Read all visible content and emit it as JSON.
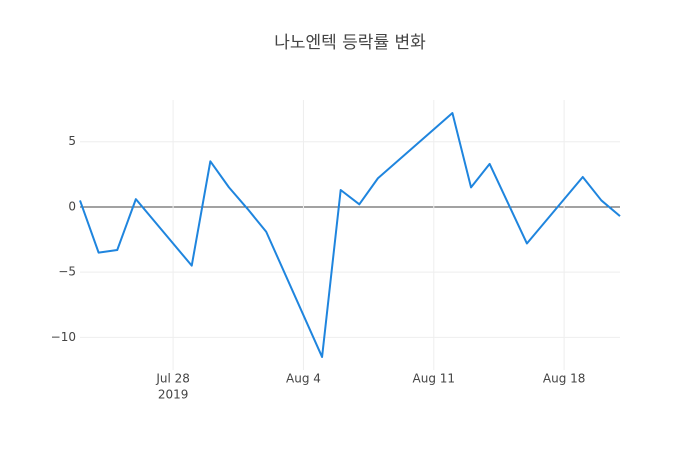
{
  "chart_data": {
    "type": "line",
    "title": "나노엔텍 등락률 변화",
    "x": [
      "2019-07-23",
      "2019-07-24",
      "2019-07-25",
      "2019-07-26",
      "2019-07-29",
      "2019-07-30",
      "2019-07-31",
      "2019-08-01",
      "2019-08-02",
      "2019-08-05",
      "2019-08-06",
      "2019-08-07",
      "2019-08-08",
      "2019-08-12",
      "2019-08-13",
      "2019-08-14",
      "2019-08-16",
      "2019-08-19",
      "2019-08-20",
      "2019-08-21"
    ],
    "series": [
      {
        "color": "#1f85de",
        "values": [
          0.5,
          -3.5,
          -3.3,
          0.6,
          -4.5,
          3.5,
          1.5,
          -0.15,
          -1.9,
          -11.5,
          1.3,
          0.2,
          2.2,
          7.2,
          1.5,
          3.3,
          -2.8,
          2.3,
          0.5,
          -0.7
        ]
      }
    ],
    "xlim": [
      "2019-07-23",
      "2019-08-21"
    ],
    "xticks": [
      {
        "value": "2019-07-28",
        "label": "Jul 28"
      },
      {
        "value": "2019-08-04",
        "label": "Aug 4"
      },
      {
        "value": "2019-08-11",
        "label": "Aug 11"
      },
      {
        "value": "2019-08-18",
        "label": "Aug 18"
      }
    ],
    "x_year_label": "2019",
    "ylim": [
      -12.5,
      8.2
    ],
    "yticks": [
      {
        "value": -10,
        "label": "−10"
      },
      {
        "value": -5,
        "label": "−5"
      },
      0,
      5
    ],
    "grid": true
  }
}
